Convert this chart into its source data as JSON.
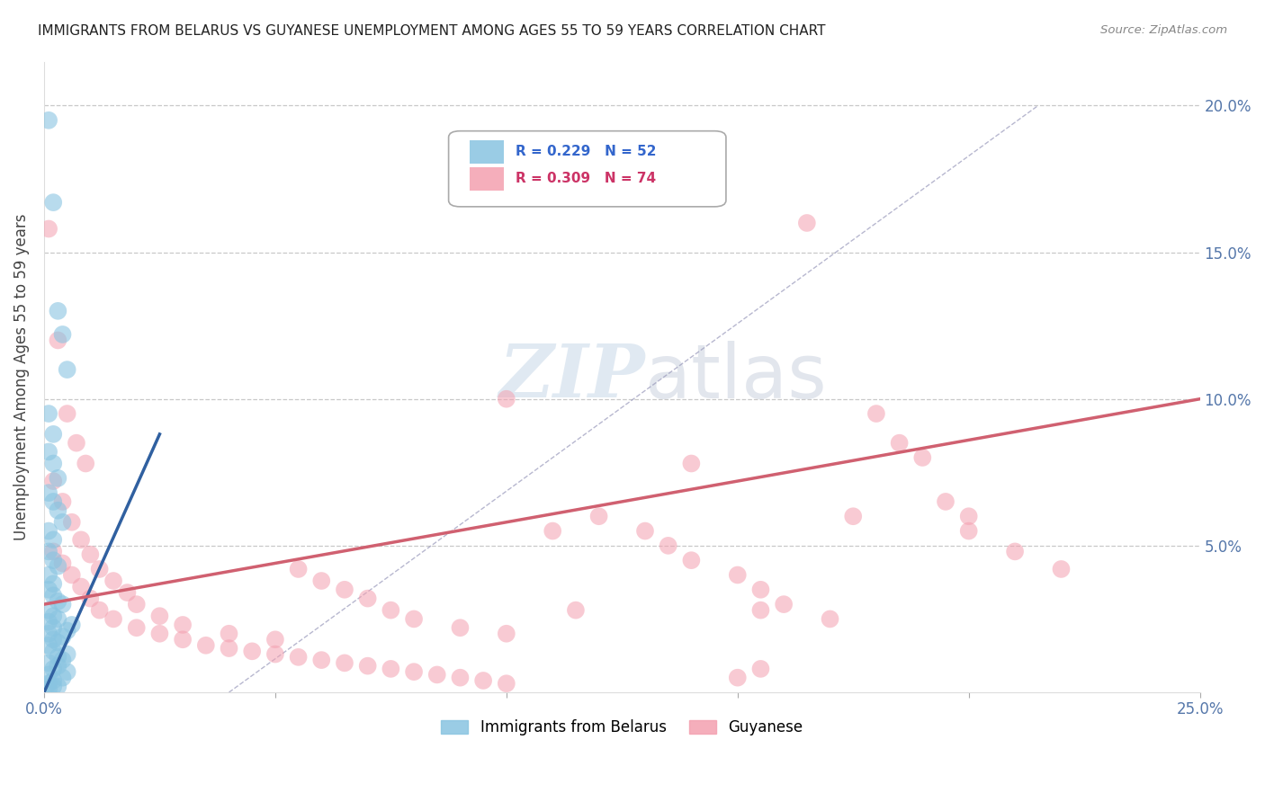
{
  "title": "IMMIGRANTS FROM BELARUS VS GUYANESE UNEMPLOYMENT AMONG AGES 55 TO 59 YEARS CORRELATION CHART",
  "source": "Source: ZipAtlas.com",
  "ylabel": "Unemployment Among Ages 55 to 59 years",
  "xlim": [
    0.0,
    0.25
  ],
  "ylim": [
    0.0,
    0.215
  ],
  "xticks": [
    0.0,
    0.05,
    0.1,
    0.15,
    0.2,
    0.25
  ],
  "xticklabels": [
    "0.0%",
    "",
    "",
    "",
    "",
    "25.0%"
  ],
  "yticks": [
    0.05,
    0.1,
    0.15,
    0.2
  ],
  "yticklabels_right": [
    "5.0%",
    "10.0%",
    "15.0%",
    "20.0%"
  ],
  "blue_color": "#89c4e1",
  "pink_color": "#f4a0b0",
  "blue_line_color": "#3060a0",
  "pink_line_color": "#d06070",
  "legend_label_blue": "Immigrants from Belarus",
  "legend_label_pink": "Guyanese",
  "legend_R_blue": "R = 0.229",
  "legend_N_blue": "N = 52",
  "legend_R_pink": "R = 0.309",
  "legend_N_pink": "N = 74",
  "blue_trend": [
    0.0,
    0.0,
    0.025,
    0.088
  ],
  "pink_trend": [
    0.0,
    0.03,
    0.25,
    0.1
  ],
  "blue_scatter": [
    [
      0.001,
      0.195
    ],
    [
      0.002,
      0.167
    ],
    [
      0.003,
      0.13
    ],
    [
      0.004,
      0.122
    ],
    [
      0.005,
      0.11
    ],
    [
      0.001,
      0.095
    ],
    [
      0.002,
      0.088
    ],
    [
      0.001,
      0.082
    ],
    [
      0.002,
      0.078
    ],
    [
      0.003,
      0.073
    ],
    [
      0.001,
      0.068
    ],
    [
      0.002,
      0.065
    ],
    [
      0.003,
      0.062
    ],
    [
      0.004,
      0.058
    ],
    [
      0.001,
      0.055
    ],
    [
      0.002,
      0.052
    ],
    [
      0.001,
      0.048
    ],
    [
      0.002,
      0.045
    ],
    [
      0.003,
      0.043
    ],
    [
      0.001,
      0.04
    ],
    [
      0.002,
      0.037
    ],
    [
      0.001,
      0.035
    ],
    [
      0.002,
      0.033
    ],
    [
      0.003,
      0.031
    ],
    [
      0.001,
      0.028
    ],
    [
      0.002,
      0.026
    ],
    [
      0.001,
      0.024
    ],
    [
      0.002,
      0.022
    ],
    [
      0.001,
      0.02
    ],
    [
      0.002,
      0.018
    ],
    [
      0.001,
      0.016
    ],
    [
      0.002,
      0.014
    ],
    [
      0.003,
      0.012
    ],
    [
      0.001,
      0.01
    ],
    [
      0.002,
      0.008
    ],
    [
      0.001,
      0.006
    ],
    [
      0.002,
      0.004
    ],
    [
      0.003,
      0.002
    ],
    [
      0.001,
      0.003
    ],
    [
      0.004,
      0.005
    ],
    [
      0.005,
      0.007
    ],
    [
      0.003,
      0.009
    ],
    [
      0.004,
      0.011
    ],
    [
      0.005,
      0.013
    ],
    [
      0.003,
      0.017
    ],
    [
      0.004,
      0.019
    ],
    [
      0.005,
      0.021
    ],
    [
      0.006,
      0.023
    ],
    [
      0.003,
      0.025
    ],
    [
      0.004,
      0.03
    ],
    [
      0.002,
      0.002
    ],
    [
      0.001,
      0.001
    ]
  ],
  "pink_scatter": [
    [
      0.001,
      0.158
    ],
    [
      0.003,
      0.12
    ],
    [
      0.005,
      0.095
    ],
    [
      0.007,
      0.085
    ],
    [
      0.009,
      0.078
    ],
    [
      0.002,
      0.072
    ],
    [
      0.004,
      0.065
    ],
    [
      0.006,
      0.058
    ],
    [
      0.008,
      0.052
    ],
    [
      0.01,
      0.047
    ],
    [
      0.012,
      0.042
    ],
    [
      0.015,
      0.038
    ],
    [
      0.018,
      0.034
    ],
    [
      0.02,
      0.03
    ],
    [
      0.025,
      0.026
    ],
    [
      0.03,
      0.023
    ],
    [
      0.04,
      0.02
    ],
    [
      0.05,
      0.018
    ],
    [
      0.055,
      0.042
    ],
    [
      0.06,
      0.038
    ],
    [
      0.065,
      0.035
    ],
    [
      0.07,
      0.032
    ],
    [
      0.075,
      0.028
    ],
    [
      0.08,
      0.025
    ],
    [
      0.09,
      0.022
    ],
    [
      0.1,
      0.02
    ],
    [
      0.002,
      0.048
    ],
    [
      0.004,
      0.044
    ],
    [
      0.006,
      0.04
    ],
    [
      0.008,
      0.036
    ],
    [
      0.01,
      0.032
    ],
    [
      0.012,
      0.028
    ],
    [
      0.015,
      0.025
    ],
    [
      0.02,
      0.022
    ],
    [
      0.025,
      0.02
    ],
    [
      0.03,
      0.018
    ],
    [
      0.035,
      0.016
    ],
    [
      0.04,
      0.015
    ],
    [
      0.045,
      0.014
    ],
    [
      0.05,
      0.013
    ],
    [
      0.055,
      0.012
    ],
    [
      0.06,
      0.011
    ],
    [
      0.065,
      0.01
    ],
    [
      0.07,
      0.009
    ],
    [
      0.075,
      0.008
    ],
    [
      0.08,
      0.007
    ],
    [
      0.085,
      0.006
    ],
    [
      0.09,
      0.005
    ],
    [
      0.095,
      0.004
    ],
    [
      0.1,
      0.003
    ],
    [
      0.11,
      0.055
    ],
    [
      0.12,
      0.06
    ],
    [
      0.13,
      0.055
    ],
    [
      0.135,
      0.05
    ],
    [
      0.14,
      0.045
    ],
    [
      0.15,
      0.04
    ],
    [
      0.155,
      0.035
    ],
    [
      0.16,
      0.03
    ],
    [
      0.17,
      0.025
    ],
    [
      0.175,
      0.06
    ],
    [
      0.18,
      0.095
    ],
    [
      0.185,
      0.085
    ],
    [
      0.19,
      0.08
    ],
    [
      0.195,
      0.065
    ],
    [
      0.2,
      0.055
    ],
    [
      0.21,
      0.048
    ],
    [
      0.22,
      0.042
    ],
    [
      0.1,
      0.1
    ],
    [
      0.14,
      0.078
    ],
    [
      0.165,
      0.16
    ],
    [
      0.115,
      0.028
    ],
    [
      0.155,
      0.028
    ],
    [
      0.2,
      0.06
    ],
    [
      0.155,
      0.008
    ],
    [
      0.15,
      0.005
    ]
  ]
}
